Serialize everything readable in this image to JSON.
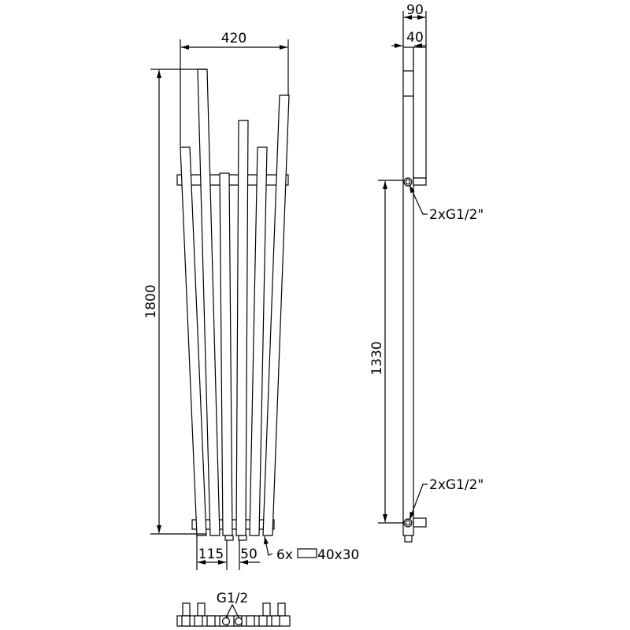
{
  "front_view": {
    "width_dim": "420",
    "height_dim": "1800",
    "spacing_dim_1": "115",
    "spacing_dim_2": "50",
    "tube_label_count": "6x",
    "tube_label_size": "40x30"
  },
  "side_view": {
    "depth_dim": "90",
    "tube_depth_dim": "40",
    "connection_spacing_dim": "1330",
    "top_connection_label": "2xG1/2\"",
    "bottom_connection_label": "2xG1/2\""
  },
  "bottom_view": {
    "connection_label": "G1/2"
  },
  "line_color": "#000000",
  "background_color": "#ffffff"
}
